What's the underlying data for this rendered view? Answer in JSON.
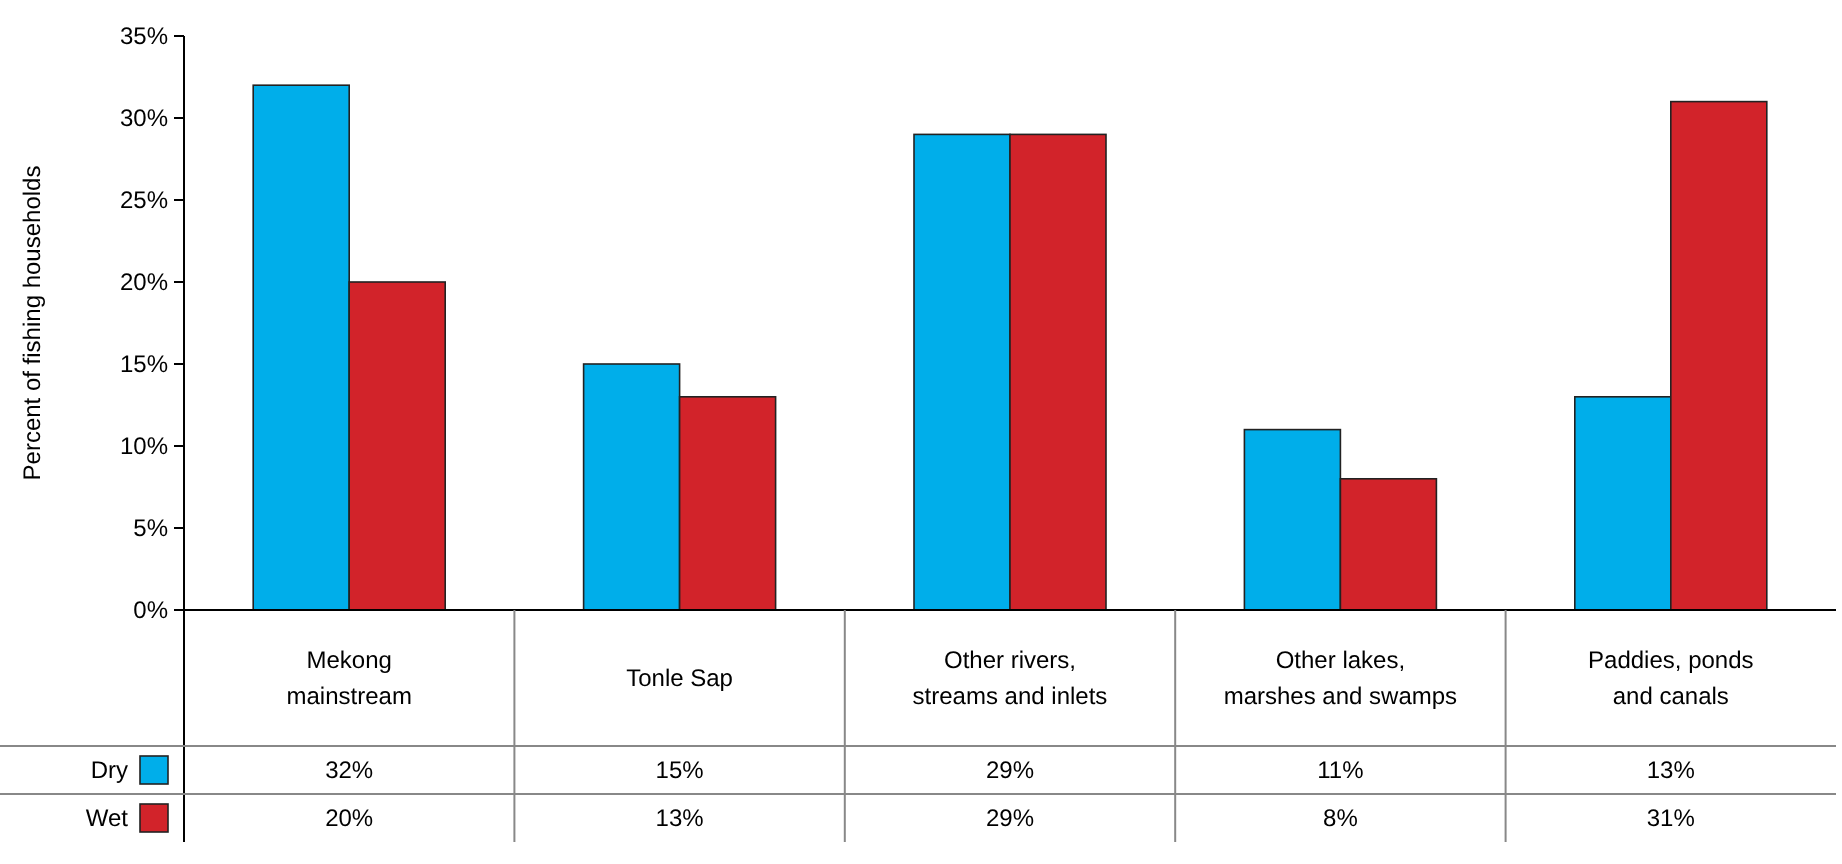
{
  "chart_data": {
    "type": "bar",
    "ylabel": "Percent of fishing households",
    "categories": [
      "Mekong mainstream",
      "Tonle Sap",
      "Other rivers, streams and inlets",
      "Other lakes, marshes and swamps",
      "Paddies, ponds and canals"
    ],
    "series": [
      {
        "name": "Dry",
        "color": "#00aeea",
        "values": [
          32,
          15,
          29,
          11,
          13
        ],
        "value_labels": [
          "32%",
          "15%",
          "29%",
          "11%",
          "13%"
        ]
      },
      {
        "name": "Wet",
        "color": "#d2232a",
        "values": [
          20,
          13,
          29,
          8,
          31
        ],
        "value_labels": [
          "20%",
          "13%",
          "29%",
          "8%",
          "31%"
        ]
      }
    ],
    "ylim": [
      0,
      35
    ],
    "yticks": [
      {
        "value": 0,
        "label": "0%"
      },
      {
        "value": 5,
        "label": "5%"
      },
      {
        "value": 10,
        "label": "10%"
      },
      {
        "value": 15,
        "label": "15%"
      },
      {
        "value": 20,
        "label": "20%"
      },
      {
        "value": 25,
        "label": "25%"
      },
      {
        "value": 30,
        "label": "30%"
      },
      {
        "value": 35,
        "label": "35%"
      }
    ],
    "legend": "bottom left",
    "grid": false
  }
}
